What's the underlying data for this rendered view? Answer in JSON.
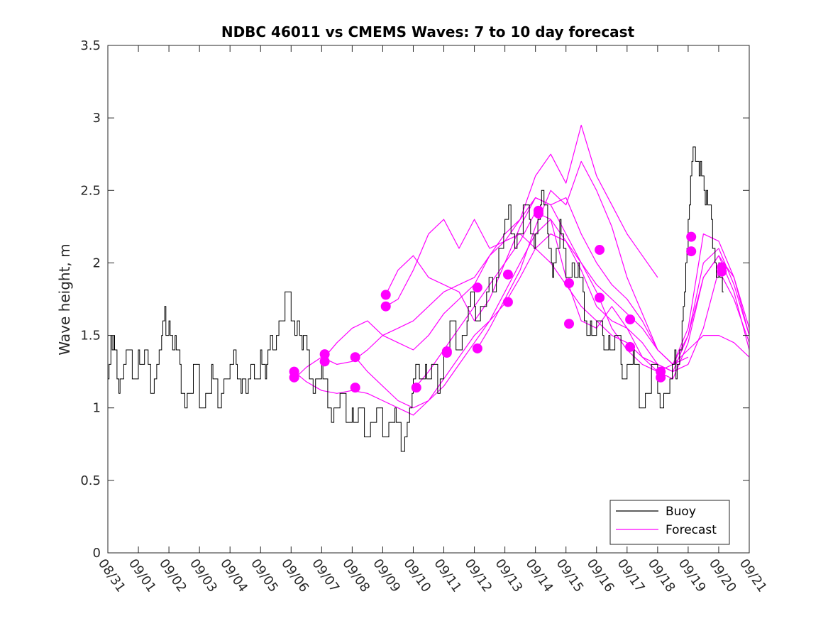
{
  "chart_data": {
    "type": "line",
    "title": "NDBC 46011 vs CMEMS Waves: 7 to 10 day forecast",
    "xlabel": "",
    "ylabel": "Wave height, m",
    "xlim": [
      0,
      21
    ],
    "ylim": [
      0,
      3.5
    ],
    "yticks": [
      0,
      0.5,
      1,
      1.5,
      2,
      2.5,
      3,
      3.5
    ],
    "ytick_labels": [
      "0",
      "0.5",
      "1",
      "1.5",
      "2",
      "2.5",
      "3",
      "3.5"
    ],
    "xtick_labels": [
      "08/31",
      "09/01",
      "09/02",
      "09/03",
      "09/04",
      "09/05",
      "09/06",
      "09/07",
      "09/08",
      "09/09",
      "09/10",
      "09/11",
      "09/12",
      "09/13",
      "09/14",
      "09/15",
      "09/16",
      "09/17",
      "09/18",
      "09/19",
      "09/20",
      "09/21"
    ],
    "legend": {
      "position": "bottom-right",
      "entries": [
        "Buoy",
        "Forecast"
      ]
    },
    "colors": {
      "buoy": "#000000",
      "forecast": "#ff00ff",
      "axis": "#262626"
    },
    "buoy": {
      "name": "Buoy",
      "x": [
        0,
        0.1,
        0.2,
        0.3,
        0.4,
        0.6,
        0.8,
        1.0,
        1.2,
        1.4,
        1.6,
        1.8,
        1.9,
        2.0,
        2.2,
        2.4,
        2.6,
        2.8,
        3.0,
        3.2,
        3.4,
        3.6,
        3.8,
        4.0,
        4.2,
        4.4,
        4.6,
        4.8,
        5.0,
        5.2,
        5.4,
        5.6,
        5.8,
        6.0,
        6.2,
        6.4,
        6.6,
        6.8,
        7.0,
        7.2,
        7.4,
        7.6,
        7.8,
        8.0,
        8.2,
        8.4,
        8.6,
        8.8,
        9.0,
        9.2,
        9.4,
        9.6,
        9.8,
        10.0,
        10.2,
        10.4,
        10.6,
        10.8,
        11.0,
        11.2,
        11.4,
        11.6,
        11.8,
        12.0,
        12.2,
        12.4,
        12.6,
        12.8,
        13.0,
        13.2,
        13.4,
        13.6,
        13.8,
        14.0,
        14.2,
        14.4,
        14.6,
        14.8,
        15.0,
        15.2,
        15.4,
        15.6,
        15.8,
        16.0,
        16.2,
        16.4,
        16.6,
        16.8,
        17.0,
        17.2,
        17.4,
        17.6,
        17.8,
        18.0,
        18.2,
        18.4,
        18.6,
        18.8,
        19.0,
        19.2,
        19.4,
        19.6,
        19.8,
        20.0,
        20.2
      ],
      "values": [
        1.25,
        1.5,
        1.35,
        1.3,
        1.2,
        1.3,
        1.3,
        1.35,
        1.3,
        1.2,
        1.3,
        1.5,
        1.6,
        1.55,
        1.35,
        1.2,
        1.1,
        1.15,
        1.15,
        1.1,
        1.15,
        1.1,
        1.2,
        1.15,
        1.35,
        1.2,
        1.1,
        1.25,
        1.35,
        1.2,
        1.5,
        1.6,
        1.65,
        1.7,
        1.6,
        1.4,
        1.3,
        1.2,
        1.15,
        1.1,
        1.0,
        0.95,
        0.95,
        0.95,
        0.9,
        0.9,
        0.85,
        0.85,
        0.85,
        0.85,
        0.85,
        0.8,
        0.9,
        1.1,
        1.25,
        1.25,
        1.15,
        1.2,
        1.35,
        1.45,
        1.5,
        1.45,
        1.6,
        1.75,
        1.65,
        1.7,
        1.85,
        2.05,
        2.2,
        2.3,
        2.2,
        2.25,
        2.35,
        2.2,
        2.4,
        2.25,
        2.0,
        2.15,
        1.95,
        2.0,
        1.85,
        1.7,
        1.55,
        1.5,
        1.55,
        1.45,
        1.4,
        1.35,
        1.3,
        1.25,
        1.15,
        1.1,
        1.15,
        1.2,
        1.05,
        1.1,
        1.3,
        1.6,
        2.2,
        2.85,
        2.7,
        2.35,
        2.2,
        1.95,
        1.7
      ]
    },
    "forecast_series": [
      {
        "name": "Forecast",
        "x": [
          6.1,
          6.5,
          7.0,
          7.5,
          8.0,
          8.5,
          9.0,
          9.5,
          10.0,
          10.5,
          11.0,
          11.5,
          12.0,
          12.5,
          13.0,
          13.5,
          14.0,
          14.5,
          15.0,
          15.5,
          16.0,
          16.5,
          17.0,
          17.5,
          18.0,
          18.5,
          19.0,
          19.5,
          20.0,
          20.5,
          21.0
        ],
        "values": [
          1.25,
          1.18,
          1.12,
          1.1,
          1.12,
          1.1,
          1.05,
          1.0,
          0.95,
          1.05,
          1.2,
          1.35,
          1.5,
          1.6,
          1.72,
          1.9,
          2.1,
          2.2,
          2.15,
          2.0,
          1.8,
          1.55,
          1.4,
          1.3,
          1.25,
          1.3,
          1.5,
          1.9,
          2.05,
          1.9,
          1.5
        ]
      },
      {
        "name": "Forecast",
        "x": [
          6.1,
          6.5,
          7.0,
          7.5,
          8.0,
          8.5,
          9.0,
          9.5,
          10.0,
          10.5,
          11.0,
          11.5,
          12.0,
          12.5,
          13.0,
          13.5,
          14.0,
          14.5,
          15.0,
          15.5,
          16.0,
          16.5,
          17.0,
          17.5,
          18.0
        ],
        "values": [
          1.2,
          1.28,
          1.35,
          1.3,
          1.32,
          1.4,
          1.5,
          1.55,
          1.6,
          1.7,
          1.8,
          1.85,
          1.9,
          2.05,
          2.15,
          2.3,
          2.6,
          2.75,
          2.55,
          2.95,
          2.6,
          2.4,
          2.2,
          2.05,
          1.9
        ]
      },
      {
        "name": "Forecast",
        "x": [
          7.1,
          7.5,
          8.0,
          8.5,
          9.0,
          9.5,
          10.0,
          10.5,
          11.0,
          11.5,
          12.0,
          12.5,
          13.0,
          13.5,
          14.0,
          14.5,
          15.0,
          15.5,
          16.0,
          16.5,
          17.0,
          17.5,
          18.0,
          18.5,
          19.0
        ],
        "values": [
          1.35,
          1.45,
          1.55,
          1.6,
          1.5,
          1.45,
          1.4,
          1.5,
          1.65,
          1.75,
          1.85,
          2.05,
          2.2,
          2.3,
          2.45,
          2.4,
          2.45,
          2.2,
          2.0,
          1.85,
          1.75,
          1.6,
          1.4,
          1.3,
          1.35
        ]
      },
      {
        "name": "Forecast",
        "x": [
          8.1,
          8.5,
          9.0,
          9.5,
          10.0,
          10.5,
          11.0,
          11.5,
          12.0,
          12.5,
          13.0,
          13.5,
          14.0,
          14.5,
          15.0,
          15.5,
          16.0,
          16.5,
          17.0,
          17.5,
          18.0,
          18.5,
          19.0,
          19.5,
          20.0,
          20.5,
          21.0
        ],
        "values": [
          1.35,
          1.25,
          1.15,
          1.05,
          1.0,
          1.05,
          1.15,
          1.3,
          1.45,
          1.6,
          1.8,
          2.0,
          2.2,
          2.3,
          2.15,
          1.95,
          1.7,
          1.6,
          1.55,
          1.45,
          1.3,
          1.25,
          1.5,
          2.0,
          2.1,
          1.85,
          1.5
        ]
      },
      {
        "name": "Forecast",
        "x": [
          9.1,
          9.5,
          10.0,
          10.5,
          11.0,
          11.5,
          12.0,
          12.5,
          13.0,
          13.5,
          14.0,
          14.5,
          15.0,
          15.5,
          16.0,
          16.5,
          17.0,
          17.5,
          18.0,
          18.5,
          19.0,
          19.5,
          20.0,
          20.5,
          21.0
        ],
        "values": [
          1.78,
          1.95,
          2.05,
          1.9,
          1.85,
          1.8,
          1.6,
          1.75,
          2.0,
          2.25,
          2.45,
          2.4,
          2.2,
          2.0,
          1.85,
          1.75,
          1.65,
          1.55,
          1.4,
          1.3,
          1.4,
          1.5,
          1.5,
          1.45,
          1.35
        ]
      },
      {
        "name": "Forecast",
        "x": [
          9.1,
          9.5,
          10.0,
          10.5,
          11.0,
          11.5,
          12.0,
          12.5,
          13.0,
          13.5,
          14.0,
          14.5,
          15.0,
          15.5,
          16.0,
          16.5,
          17.0,
          17.5,
          18.0,
          18.5,
          19.0,
          19.5,
          20.0,
          20.5,
          21.0
        ],
        "values": [
          1.7,
          1.75,
          1.95,
          2.2,
          2.3,
          2.1,
          2.3,
          2.1,
          2.15,
          2.2,
          2.1,
          2.0,
          1.85,
          1.7,
          1.6,
          1.5,
          1.45,
          1.35,
          1.3,
          1.25,
          1.3,
          1.55,
          1.95,
          1.75,
          1.45
        ]
      },
      {
        "name": "Forecast",
        "x": [
          10.1,
          10.5,
          11.0,
          11.5,
          12.0,
          12.5,
          13.0,
          13.5,
          14.0,
          14.5,
          15.0,
          15.5,
          16.0,
          16.5,
          17.0,
          17.5,
          18.0,
          18.5,
          19.0,
          19.5,
          20.0,
          20.5,
          21.0
        ],
        "values": [
          1.15,
          1.25,
          1.4,
          1.55,
          1.7,
          1.85,
          2.0,
          2.15,
          2.35,
          2.3,
          1.9,
          1.6,
          1.55,
          1.7,
          1.55,
          1.35,
          1.25,
          1.2,
          1.45,
          1.9,
          2.05,
          1.8,
          1.4
        ]
      },
      {
        "name": "Forecast",
        "x": [
          12.1,
          12.5,
          13.0,
          13.5,
          14.0,
          14.5,
          15.0,
          15.5,
          16.0,
          16.5,
          17.0,
          17.5,
          18.0,
          18.5,
          19.0,
          19.5,
          20.0,
          20.5,
          21.0
        ],
        "values": [
          1.41,
          1.55,
          1.75,
          1.95,
          2.25,
          2.5,
          2.4,
          2.7,
          2.5,
          2.25,
          1.9,
          1.65,
          1.4,
          1.3,
          1.55,
          2.2,
          2.15,
          1.9,
          1.55
        ]
      }
    ],
    "forecast_markers": [
      {
        "x": 6.1,
        "y": 1.25
      },
      {
        "x": 6.1,
        "y": 1.21
      },
      {
        "x": 7.1,
        "y": 1.37
      },
      {
        "x": 7.1,
        "y": 1.32
      },
      {
        "x": 8.1,
        "y": 1.35
      },
      {
        "x": 8.1,
        "y": 1.14
      },
      {
        "x": 9.1,
        "y": 1.78
      },
      {
        "x": 9.1,
        "y": 1.7
      },
      {
        "x": 10.1,
        "y": 1.14
      },
      {
        "x": 11.1,
        "y": 1.39
      },
      {
        "x": 11.1,
        "y": 1.38
      },
      {
        "x": 12.1,
        "y": 1.83
      },
      {
        "x": 12.1,
        "y": 1.41
      },
      {
        "x": 13.1,
        "y": 1.92
      },
      {
        "x": 13.1,
        "y": 1.73
      },
      {
        "x": 14.1,
        "y": 2.36
      },
      {
        "x": 14.1,
        "y": 2.34
      },
      {
        "x": 15.1,
        "y": 1.86
      },
      {
        "x": 15.1,
        "y": 1.58
      },
      {
        "x": 16.1,
        "y": 2.09
      },
      {
        "x": 16.1,
        "y": 1.76
      },
      {
        "x": 17.1,
        "y": 1.61
      },
      {
        "x": 17.1,
        "y": 1.42
      },
      {
        "x": 18.1,
        "y": 1.25
      },
      {
        "x": 18.1,
        "y": 1.21
      },
      {
        "x": 19.1,
        "y": 2.18
      },
      {
        "x": 19.1,
        "y": 2.08
      },
      {
        "x": 20.1,
        "y": 1.97
      },
      {
        "x": 20.1,
        "y": 1.94
      }
    ]
  }
}
